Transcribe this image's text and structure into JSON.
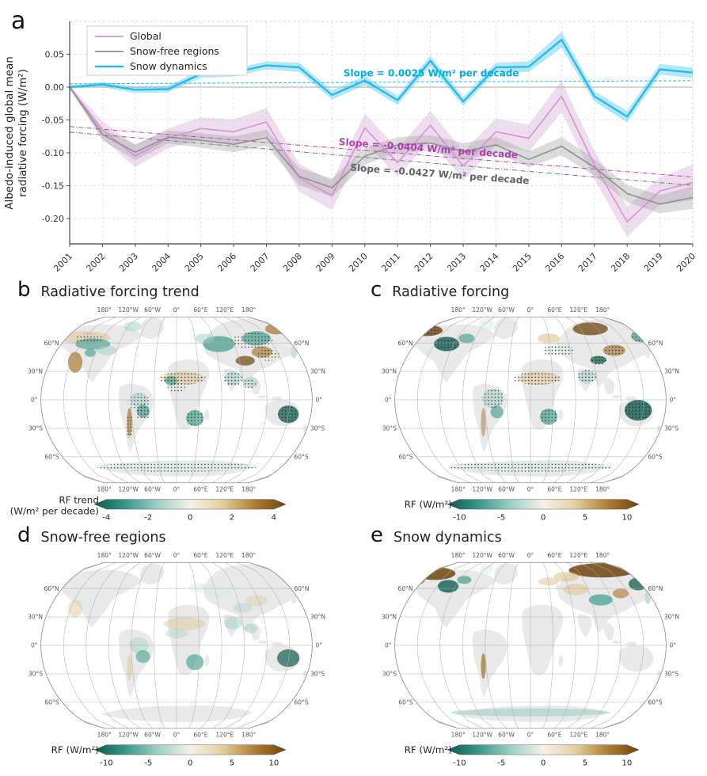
{
  "panel_a": {
    "letter": "a",
    "ylabel_lines": [
      "Albedo-induced global mean",
      "radiative forcing (W/m²)"
    ]
  },
  "chart_data": {
    "type": "line",
    "x": [
      2001,
      2002,
      2003,
      2004,
      2005,
      2006,
      2007,
      2008,
      2009,
      2010,
      2011,
      2012,
      2013,
      2014,
      2015,
      2016,
      2017,
      2018,
      2019,
      2020
    ],
    "ylabel": "Albedo-induced global mean radiative forcing (W/m²)",
    "ylim": [
      -0.24,
      0.1
    ],
    "yticks": [
      0.05,
      0.0,
      -0.05,
      -0.1,
      -0.15,
      -0.2
    ],
    "grid": true,
    "legend_position": "top-left",
    "series": [
      {
        "name": "Global",
        "color": "#d492d4",
        "width": 1.6,
        "band_color": "#cf9fcf",
        "band_opacity": 0.35,
        "values": [
          0,
          -0.065,
          -0.105,
          -0.078,
          -0.063,
          -0.068,
          -0.053,
          -0.138,
          -0.165,
          -0.062,
          -0.115,
          -0.058,
          -0.12,
          -0.068,
          -0.078,
          -0.014,
          -0.118,
          -0.205,
          -0.158,
          -0.145
        ],
        "band": [
          0.003,
          0.013,
          0.017,
          0.015,
          0.017,
          0.019,
          0.021,
          0.021,
          0.022,
          0.022,
          0.021,
          0.022,
          0.022,
          0.02,
          0.021,
          0.024,
          0.022,
          0.023,
          0.021,
          0.027
        ],
        "trend": {
          "start": -0.06,
          "end": -0.1368,
          "color": "#c23cc2",
          "dash": "6,2,1,2"
        },
        "slope_label": {
          "text": "Slope = -0.0404 W/m² per decade",
          "x_year": 8.2,
          "value": -0.088,
          "rotate": 4.3,
          "color": "#b13ab1"
        }
      },
      {
        "name": "Snow-free regions",
        "color": "#8f8f8f",
        "width": 1.6,
        "band_color": "#9a9a9a",
        "band_opacity": 0.35,
        "values": [
          0,
          -0.072,
          -0.099,
          -0.076,
          -0.081,
          -0.087,
          -0.077,
          -0.136,
          -0.153,
          -0.105,
          -0.088,
          -0.085,
          -0.098,
          -0.088,
          -0.11,
          -0.09,
          -0.122,
          -0.162,
          -0.178,
          -0.168
        ],
        "band": [
          0.002,
          0.009,
          0.012,
          0.01,
          0.011,
          0.012,
          0.012,
          0.013,
          0.014,
          0.013,
          0.012,
          0.012,
          0.013,
          0.012,
          0.012,
          0.014,
          0.013,
          0.013,
          0.014,
          0.017
        ],
        "trend": {
          "start": -0.0685,
          "end": -0.1496,
          "color": "#777777",
          "dash": "6,2,1,2"
        },
        "slope_label": {
          "text": "Slope = -0.0427 W/m² per decade",
          "x_year": 8.55,
          "value": -0.127,
          "rotate": 4.3,
          "color": "#60606a"
        }
      },
      {
        "name": "Snow dynamics",
        "color": "#2eb8e6",
        "width": 2.4,
        "band_color": "#55cdf2",
        "band_opacity": 0.45,
        "values": [
          0,
          0.004,
          -0.004,
          -0.003,
          0.02,
          0.022,
          0.033,
          0.03,
          -0.012,
          0.01,
          -0.02,
          0.04,
          -0.022,
          0.03,
          0.031,
          0.072,
          -0.014,
          -0.045,
          0.027,
          0.022
        ],
        "band": [
          0.002,
          0.004,
          0.005,
          0.005,
          0.006,
          0.006,
          0.006,
          0.007,
          0.007,
          0.007,
          0.007,
          0.008,
          0.007,
          0.007,
          0.008,
          0.012,
          0.008,
          0.009,
          0.008,
          0.008
        ],
        "trend": {
          "start": 0.005,
          "end": 0.0098,
          "color": "#17c3ea",
          "dash": "4,2"
        },
        "slope_label": {
          "text": "Slope = 0.0025 W/m² per decade",
          "x_year": 8.35,
          "value": 0.0165,
          "rotate": 0,
          "color": "#00ade4"
        }
      }
    ]
  },
  "map_labels": {
    "top": [
      "180°",
      "120°W",
      "60°W",
      "0°",
      "60°E",
      "120°E",
      "180°"
    ],
    "bottom": [
      "180°",
      "120°W",
      "60°W",
      "0°",
      "60°E",
      "120°E",
      "180°"
    ],
    "left": [
      "60°N",
      "30°N",
      "0°",
      "30°S",
      "60°S"
    ],
    "right": [
      "60°N",
      "30°N",
      "0°",
      "30°S",
      "60°S"
    ]
  },
  "palette": {
    "tealDark": "#125c50",
    "teal": "#3a9a8a",
    "tealLight": "#9fd0c6",
    "tealPale": "#d8ece7",
    "tan": "#dcc491",
    "brown": "#a5762c",
    "brownDark": "#6f430c",
    "land": "#e9e9e9"
  },
  "colorbar_gradient": [
    "#0b5a4e",
    "#3a9a8a",
    "#9fd0c6",
    "#f4f1ea",
    "#e5cf9e",
    "#b07f34",
    "#6f430c"
  ],
  "panels": {
    "b": {
      "letter": "b",
      "title": "Radiative forcing trend",
      "colorbar": {
        "label_lines": [
          "RF trend",
          "(W/m² per decade)"
        ],
        "ticks": [
          "-4",
          "-2",
          "0",
          "2",
          "4"
        ]
      },
      "patches": [
        [
          90,
          44,
          32,
          8,
          "tan",
          0.55
        ],
        [
          100,
          52,
          22,
          7,
          "teal",
          0.6
        ],
        [
          118,
          60,
          12,
          6,
          "tealLight",
          0.5
        ],
        [
          78,
          75,
          9,
          13,
          "brown",
          0.7
        ],
        [
          97,
          63,
          7,
          5,
          "teal",
          0.6
        ],
        [
          150,
          30,
          11,
          6,
          "tealLight",
          0.5
        ],
        [
          158,
          122,
          11,
          9,
          "tealLight",
          0.5
        ],
        [
          163,
          136,
          8,
          8,
          "teal",
          0.65
        ],
        [
          146,
          150,
          3,
          18,
          "brown",
          0.7
        ],
        [
          213,
          95,
          26,
          8,
          "tan",
          0.6
        ],
        [
          198,
          98,
          8,
          6,
          "teal",
          0.6
        ],
        [
          228,
          145,
          11,
          10,
          "teal",
          0.65
        ],
        [
          258,
          52,
          20,
          10,
          "teal",
          0.7
        ],
        [
          240,
          45,
          12,
          6,
          "tealLight",
          0.5
        ],
        [
          305,
          45,
          18,
          9,
          "teal",
          0.65
        ],
        [
          330,
          33,
          14,
          7,
          "brown",
          0.7
        ],
        [
          312,
          62,
          13,
          7,
          "brown",
          0.65
        ],
        [
          291,
          73,
          12,
          6,
          "brownDark",
          0.7
        ],
        [
          276,
          95,
          10,
          9,
          "tealLight",
          0.55
        ],
        [
          298,
          100,
          9,
          7,
          "tealLight",
          0.5
        ],
        [
          345,
          140,
          13,
          11,
          "tealDark",
          0.75
        ],
        [
          205,
          205,
          102,
          6,
          "tealPale",
          0.6
        ],
        [
          352,
          62,
          4,
          8,
          "tealLight",
          0.4
        ]
      ],
      "stipple": [
        [
          158,
          125,
          14,
          11
        ],
        [
          163,
          139,
          10,
          8
        ],
        [
          146,
          155,
          4,
          16
        ],
        [
          212,
          95,
          30,
          8
        ],
        [
          205,
          107,
          12,
          6
        ],
        [
          228,
          145,
          12,
          10
        ],
        [
          276,
          96,
          12,
          9
        ],
        [
          296,
          102,
          8,
          6
        ],
        [
          345,
          140,
          13,
          11
        ],
        [
          205,
          206,
          100,
          6
        ],
        [
          300,
          48,
          26,
          10
        ],
        [
          320,
          66,
          14,
          7
        ],
        [
          95,
          45,
          18,
          6
        ]
      ]
    },
    "c": {
      "letter": "c",
      "title": "Radiative forcing",
      "colorbar": {
        "label_lines": [
          "RF (W/m²)"
        ],
        "ticks": [
          "-10",
          "-5",
          "0",
          "5",
          "10"
        ]
      },
      "patches": [
        [
          75,
          35,
          20,
          7,
          "brownDark",
          0.8
        ],
        [
          100,
          52,
          16,
          9,
          "tealDark",
          0.8
        ],
        [
          125,
          45,
          10,
          6,
          "teal",
          0.6
        ],
        [
          150,
          28,
          10,
          8,
          "tealPale",
          0.5
        ],
        [
          228,
          45,
          14,
          6,
          "tan",
          0.6
        ],
        [
          280,
          33,
          22,
          8,
          "brownDark",
          0.75
        ],
        [
          345,
          42,
          14,
          8,
          "teal",
          0.65
        ],
        [
          310,
          60,
          14,
          7,
          "brown",
          0.65
        ],
        [
          290,
          72,
          10,
          5,
          "tealDark",
          0.75
        ],
        [
          276,
          93,
          11,
          8,
          "tealLight",
          0.55
        ],
        [
          215,
          95,
          26,
          8,
          "tan",
          0.55
        ],
        [
          228,
          143,
          11,
          10,
          "teal",
          0.65
        ],
        [
          158,
          120,
          13,
          12,
          "tealLight",
          0.55
        ],
        [
          163,
          137,
          8,
          8,
          "teal",
          0.6
        ],
        [
          340,
          135,
          17,
          13,
          "tealDark",
          0.8
        ],
        [
          205,
          205,
          103,
          6,
          "tealPale",
          0.6
        ],
        [
          146,
          150,
          3,
          18,
          "brown",
          0.5
        ],
        [
          240,
          60,
          18,
          7,
          "tealPale",
          0.5
        ]
      ],
      "stipple": [
        [
          75,
          35,
          18,
          6
        ],
        [
          100,
          52,
          15,
          8
        ],
        [
          158,
          120,
          14,
          12
        ],
        [
          213,
          95,
          30,
          8
        ],
        [
          228,
          143,
          12,
          10
        ],
        [
          276,
          93,
          12,
          9
        ],
        [
          290,
          72,
          11,
          6
        ],
        [
          310,
          60,
          13,
          7
        ],
        [
          340,
          135,
          17,
          12
        ],
        [
          205,
          206,
          103,
          6
        ],
        [
          345,
          42,
          13,
          8
        ],
        [
          240,
          60,
          20,
          8
        ]
      ]
    },
    "d": {
      "letter": "d",
      "title": "Snow-free regions",
      "colorbar": {
        "label_lines": [
          "RF (W/m²)"
        ],
        "ticks": [
          "-10",
          "-5",
          "0",
          "5",
          "10"
        ]
      },
      "patches": [
        [
          215,
          95,
          26,
          8,
          "tan",
          0.45
        ],
        [
          205,
          107,
          14,
          6,
          "tealLight",
          0.4
        ],
        [
          78,
          76,
          9,
          11,
          "tan",
          0.45
        ],
        [
          97,
          66,
          8,
          5,
          "tealPale",
          0.6
        ],
        [
          158,
          122,
          12,
          10,
          "tealLight",
          0.45
        ],
        [
          163,
          136,
          9,
          8,
          "teal",
          0.55
        ],
        [
          146,
          150,
          3,
          16,
          "tan",
          0.5
        ],
        [
          228,
          143,
          11,
          10,
          "teal",
          0.6
        ],
        [
          276,
          94,
          11,
          8,
          "tealLight",
          0.5
        ],
        [
          298,
          101,
          8,
          6,
          "tealLight",
          0.5
        ],
        [
          345,
          138,
          14,
          11,
          "tealDark",
          0.7
        ],
        [
          258,
          56,
          18,
          8,
          "tealPale",
          0.6
        ],
        [
          305,
          66,
          14,
          7,
          "tan",
          0.35
        ],
        [
          288,
          75,
          12,
          6,
          "tealLight",
          0.4
        ],
        [
          235,
          50,
          15,
          6,
          "tealPale",
          0.5
        ]
      ],
      "stipple": []
    },
    "e": {
      "letter": "e",
      "title": "Snow dynamics",
      "colorbar": {
        "label_lines": [
          "RF (W/m²)"
        ],
        "ticks": [
          "-10",
          "-5",
          "0",
          "5",
          "10"
        ]
      },
      "patches": [
        [
          85,
          32,
          26,
          8,
          "brownDark",
          0.85
        ],
        [
          63,
          40,
          10,
          6,
          "brown",
          0.7
        ],
        [
          102,
          48,
          13,
          8,
          "tealDark",
          0.8
        ],
        [
          122,
          40,
          9,
          5,
          "teal",
          0.65
        ],
        [
          150,
          26,
          9,
          7,
          "tealPale",
          0.5
        ],
        [
          295,
          28,
          42,
          9,
          "brownDark",
          0.85
        ],
        [
          250,
          36,
          16,
          6,
          "tan",
          0.6
        ],
        [
          228,
          42,
          13,
          5,
          "tan",
          0.55
        ],
        [
          262,
          52,
          16,
          7,
          "tan",
          0.55
        ],
        [
          340,
          45,
          12,
          8,
          "tealDark",
          0.75
        ],
        [
          293,
          65,
          15,
          7,
          "teal",
          0.7
        ],
        [
          318,
          57,
          10,
          6,
          "brown",
          0.6
        ],
        [
          146,
          148,
          3,
          16,
          "brown",
          0.75
        ],
        [
          205,
          206,
          100,
          5,
          "tealLight",
          0.6
        ],
        [
          352,
          62,
          4,
          8,
          "tealLight",
          0.5
        ]
      ],
      "stipple": []
    }
  }
}
